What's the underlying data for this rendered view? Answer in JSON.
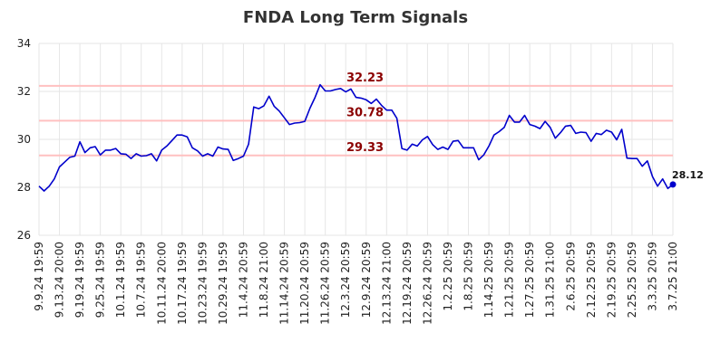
{
  "chart_data": {
    "type": "line",
    "title": "FNDA Long Term Signals",
    "xlabel": "",
    "ylabel": "",
    "ylim": [
      26,
      34
    ],
    "yticks": [
      26,
      28,
      30,
      32,
      34
    ],
    "grid": true,
    "x_tick_labels": [
      "9.9.24 19:59",
      "9.13.24 20:00",
      "9.19.24 19:59",
      "9.25.24 19:59",
      "10.1.24 19:59",
      "10.7.24 19:59",
      "10.11.24 20:00",
      "10.17.24 19:59",
      "10.23.24 19:59",
      "10.29.24 19:59",
      "11.4.24 20:59",
      "11.8.24 21:00",
      "11.14.24 20:59",
      "11.20.24 20:59",
      "11.26.24 20:59",
      "12.3.24 20:59",
      "12.9.24 20:59",
      "12.13.24 21:00",
      "12.19.24 20:59",
      "12.26.24 20:59",
      "1.2.25 20:59",
      "1.8.25 20:59",
      "1.14.25 20:59",
      "1.21.25 20:59",
      "1.27.25 20:59",
      "1.31.25 21:00",
      "2.6.25 20:59",
      "2.12.25 20:59",
      "2.19.25 20:59",
      "2.25.25 20:59",
      "3.3.25 20:59",
      "3.7.25 21:00"
    ],
    "levels": [
      {
        "value": 32.23,
        "label": "32.23"
      },
      {
        "value": 30.78,
        "label": "30.78"
      },
      {
        "value": 29.33,
        "label": "29.33"
      }
    ],
    "series": [
      {
        "color": "#0000cc",
        "values": [
          28.05,
          27.85,
          28.05,
          28.35,
          28.85,
          29.05,
          29.25,
          29.3,
          29.9,
          29.45,
          29.65,
          29.7,
          29.35,
          29.55,
          29.55,
          29.62,
          29.4,
          29.38,
          29.2,
          29.4,
          29.3,
          29.32,
          29.4,
          29.1,
          29.55,
          29.72,
          29.95,
          30.18,
          30.18,
          30.1,
          29.65,
          29.52,
          29.3,
          29.4,
          29.3,
          29.68,
          29.6,
          29.58,
          29.12,
          29.2,
          29.3,
          29.8,
          31.35,
          31.28,
          31.4,
          31.8,
          31.38,
          31.18,
          30.9,
          30.62,
          30.68,
          30.7,
          30.75,
          31.3,
          31.75,
          32.28,
          32.02,
          32.02,
          32.08,
          32.12,
          31.98,
          32.1,
          31.75,
          31.72,
          31.65,
          31.5,
          31.68,
          31.42,
          31.22,
          31.22,
          30.88,
          29.62,
          29.55,
          29.8,
          29.72,
          29.98,
          30.12,
          29.78,
          29.58,
          29.68,
          29.58,
          29.92,
          29.95,
          29.65,
          29.65,
          29.65,
          29.15,
          29.35,
          29.72,
          30.18,
          30.32,
          30.5,
          31.0,
          30.72,
          30.72,
          31.0,
          30.62,
          30.55,
          30.45,
          30.75,
          30.5,
          30.05,
          30.28,
          30.55,
          30.58,
          30.25,
          30.3,
          30.28,
          29.92,
          30.25,
          30.2,
          30.38,
          30.3,
          29.98,
          30.42,
          29.22,
          29.2,
          29.2,
          28.88,
          29.1,
          28.45,
          28.05,
          28.35,
          27.95,
          28.12
        ]
      }
    ],
    "last_value_label": "28.12"
  }
}
